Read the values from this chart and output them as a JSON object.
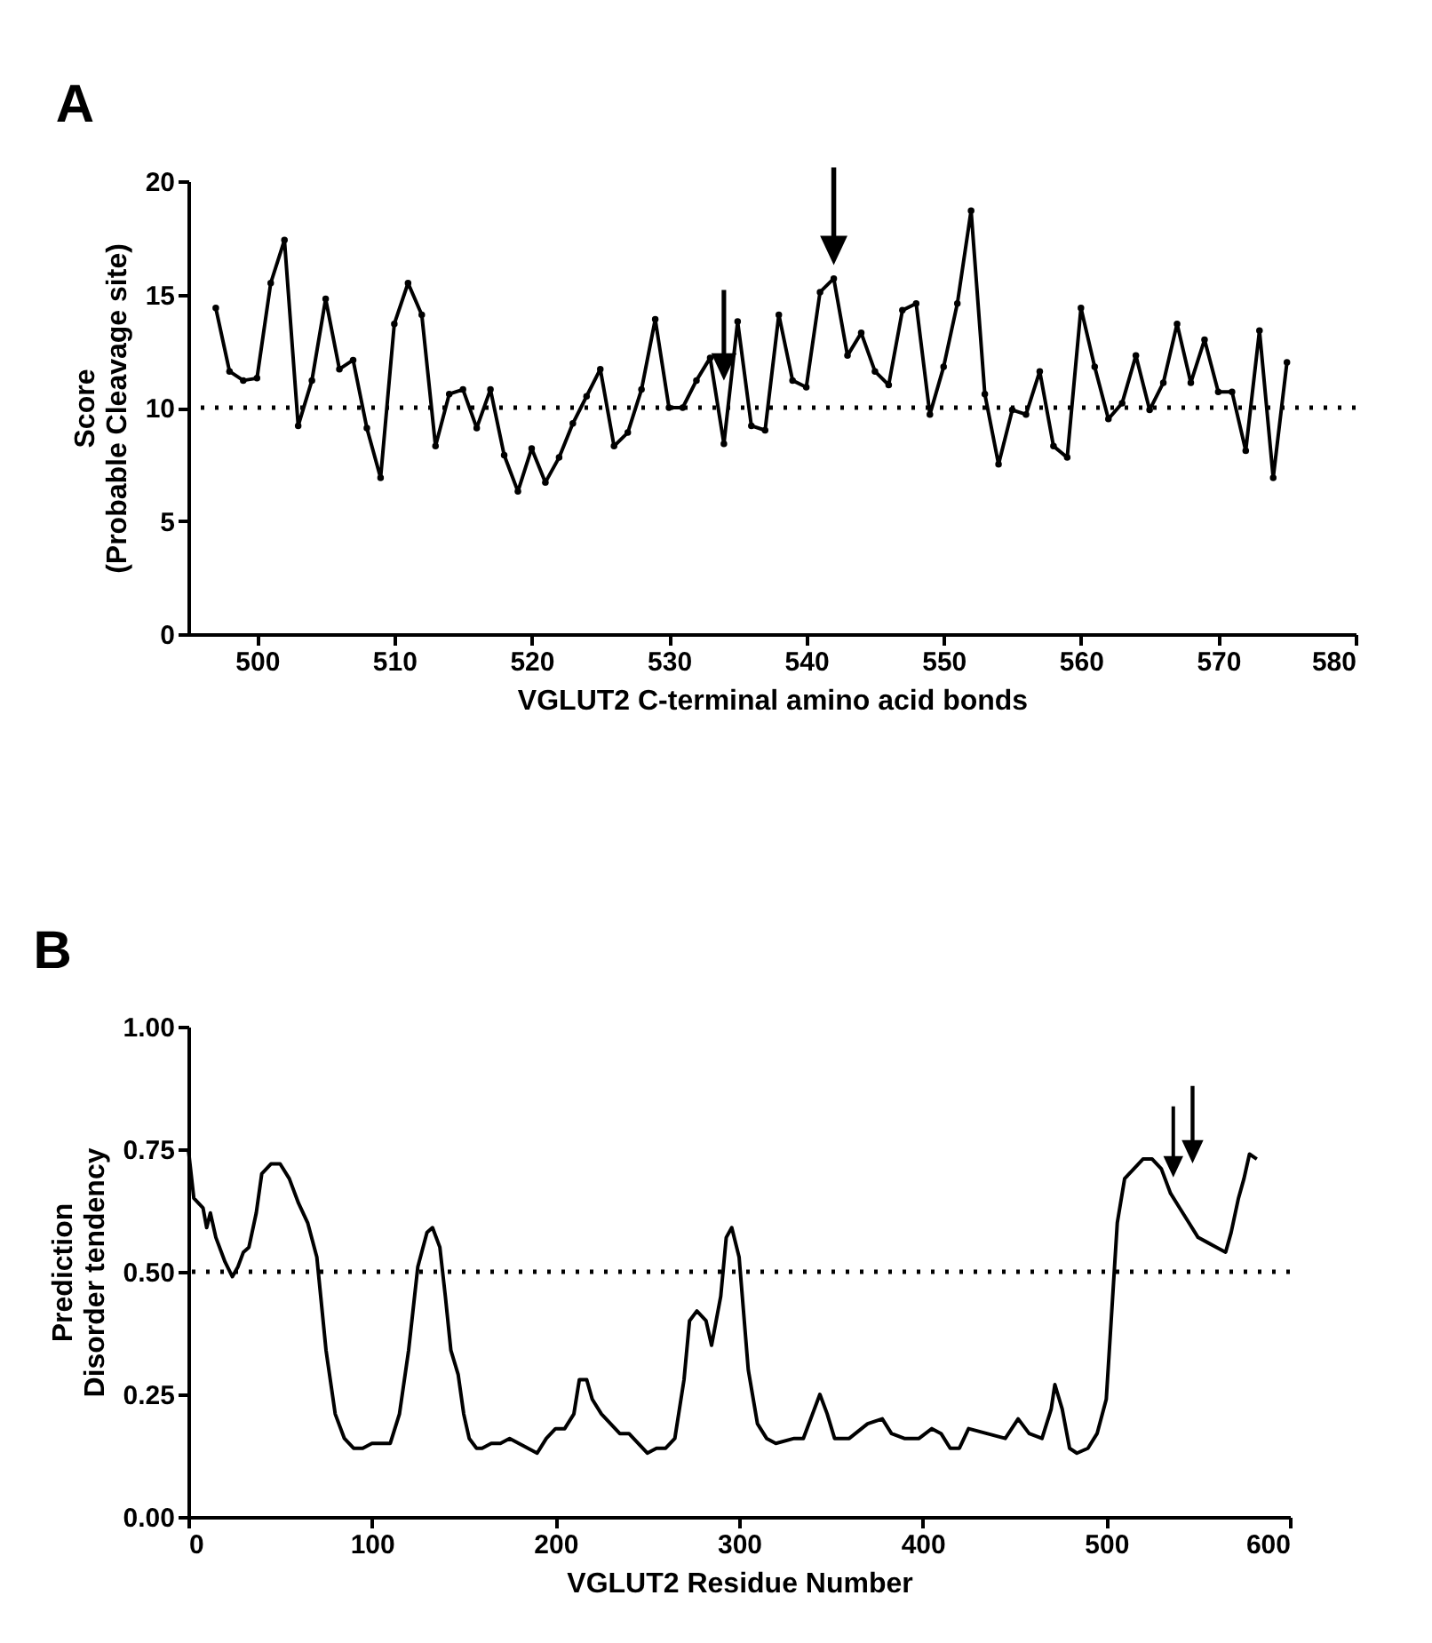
{
  "chart_data": [
    {
      "type": "line",
      "title": "A",
      "xlabel": "VGLUT2 C-terminal amino acid bonds",
      "ylabel": "Score\n(Probable Cleavage site)",
      "marker": "circle",
      "line_style": "solid",
      "grid": false,
      "xlim": [
        495,
        580
      ],
      "xticks": [
        500,
        510,
        520,
        530,
        540,
        550,
        560,
        570,
        580
      ],
      "ylim": [
        0,
        20
      ],
      "yticks": [
        0,
        5,
        10,
        15,
        20
      ],
      "ref_lines": [
        {
          "axis": "y",
          "value": 10,
          "label": null,
          "line_style": "dotted",
          "color": "#000000"
        }
      ],
      "series": [
        {
          "color": "#000000",
          "x": [
            497,
            498,
            499,
            500,
            501,
            502,
            503,
            504,
            505,
            506,
            507,
            508,
            509,
            510,
            511,
            512,
            513,
            514,
            515,
            516,
            517,
            518,
            519,
            520,
            521,
            522,
            523,
            524,
            525,
            526,
            527,
            528,
            529,
            530,
            531,
            532,
            533,
            534,
            535,
            536,
            537,
            538,
            539,
            540,
            541,
            542,
            543,
            544,
            545,
            546,
            547,
            548,
            549,
            550,
            551,
            552,
            553,
            554,
            555,
            556,
            557,
            558,
            559,
            560,
            561,
            562,
            563,
            564,
            565,
            566,
            567,
            568,
            569,
            570,
            571,
            572,
            573,
            574,
            575
          ],
          "values": [
            14.4,
            11.6,
            11.2,
            11.3,
            15.5,
            17.4,
            9.2,
            11.2,
            14.8,
            11.7,
            12.1,
            9.1,
            6.9,
            13.7,
            15.5,
            14.1,
            8.3,
            10.6,
            10.8,
            9.1,
            10.8,
            7.9,
            6.3,
            8.2,
            6.7,
            7.8,
            9.3,
            10.5,
            11.7,
            8.3,
            8.9,
            10.8,
            13.9,
            10.0,
            10.0,
            11.2,
            12.2,
            8.4,
            13.8,
            9.2,
            9.0,
            14.1,
            11.2,
            10.9,
            15.1,
            15.7,
            12.3,
            13.3,
            11.6,
            11.0,
            14.3,
            14.6,
            9.7,
            11.8,
            14.6,
            18.7,
            10.6,
            7.5,
            9.9,
            9.7,
            11.6,
            8.3,
            7.8,
            14.4,
            11.8,
            9.5,
            10.2,
            12.3,
            9.9,
            11.1,
            13.7,
            11.1,
            13.0,
            10.7,
            10.7,
            8.1,
            13.4,
            6.9,
            12.0
          ]
        }
      ]
    },
    {
      "type": "line",
      "title": "B",
      "xlabel": "VGLUT2  Residue Number",
      "ylabel": "Prediction\nDisorder tendency",
      "marker": "none",
      "line_style": "solid",
      "grid": false,
      "xlim": [
        0,
        600
      ],
      "xticks": [
        0,
        100,
        200,
        300,
        400,
        500,
        600
      ],
      "ylim": [
        0,
        1
      ],
      "yticks": [
        {
          "value": 0,
          "label": "0.00"
        },
        {
          "value": 0.25,
          "label": "0.25"
        },
        {
          "value": 0.5,
          "label": "0.50"
        },
        {
          "value": 0.75,
          "label": "0.75"
        },
        {
          "value": 1,
          "label": "1.00"
        }
      ],
      "ref_lines": [
        {
          "axis": "y",
          "value": 0.5,
          "label": null,
          "line_style": "dotted",
          "color": "#000000"
        }
      ],
      "series": [
        {
          "color": "#000000",
          "x": [
            0,
            3,
            8,
            10,
            12,
            15,
            20,
            24,
            27,
            30,
            33,
            37,
            40,
            45,
            50,
            55,
            60,
            65,
            70,
            75,
            80,
            85,
            90,
            95,
            100,
            110,
            115,
            120,
            125,
            130,
            133,
            137,
            140,
            143,
            147,
            150,
            153,
            157,
            160,
            165,
            170,
            175,
            180,
            185,
            190,
            195,
            200,
            205,
            210,
            213,
            217,
            220,
            225,
            230,
            235,
            240,
            245,
            250,
            255,
            260,
            265,
            270,
            273,
            277,
            282,
            285,
            288,
            290,
            293,
            296,
            300,
            305,
            310,
            315,
            320,
            330,
            335,
            340,
            344,
            348,
            352,
            360,
            370,
            378,
            383,
            390,
            398,
            405,
            410,
            415,
            420,
            425,
            435,
            445,
            452,
            458,
            465,
            470,
            472,
            476,
            480,
            484,
            490,
            495,
            500,
            503,
            506,
            510,
            515,
            520,
            525,
            530,
            535,
            540,
            545,
            550,
            555,
            560,
            565,
            568,
            572,
            575,
            578,
            582
          ],
          "values": [
            0.75,
            0.65,
            0.63,
            0.59,
            0.62,
            0.57,
            0.52,
            0.49,
            0.51,
            0.54,
            0.55,
            0.62,
            0.7,
            0.72,
            0.72,
            0.69,
            0.64,
            0.6,
            0.53,
            0.34,
            0.21,
            0.16,
            0.14,
            0.14,
            0.15,
            0.15,
            0.21,
            0.34,
            0.51,
            0.58,
            0.59,
            0.55,
            0.45,
            0.34,
            0.29,
            0.21,
            0.16,
            0.14,
            0.14,
            0.15,
            0.15,
            0.16,
            0.15,
            0.14,
            0.13,
            0.16,
            0.18,
            0.18,
            0.21,
            0.28,
            0.28,
            0.24,
            0.21,
            0.19,
            0.17,
            0.17,
            0.15,
            0.13,
            0.14,
            0.14,
            0.16,
            0.28,
            0.4,
            0.42,
            0.4,
            0.35,
            0.41,
            0.45,
            0.57,
            0.59,
            0.53,
            0.3,
            0.19,
            0.16,
            0.15,
            0.16,
            0.16,
            0.21,
            0.25,
            0.21,
            0.16,
            0.16,
            0.19,
            0.2,
            0.17,
            0.16,
            0.16,
            0.18,
            0.17,
            0.14,
            0.14,
            0.18,
            0.17,
            0.16,
            0.2,
            0.17,
            0.16,
            0.22,
            0.27,
            0.22,
            0.14,
            0.13,
            0.14,
            0.17,
            0.24,
            0.42,
            0.6,
            0.69,
            0.71,
            0.73,
            0.73,
            0.71,
            0.66,
            0.63,
            0.6,
            0.57,
            0.56,
            0.55,
            0.54,
            0.58,
            0.65,
            0.69,
            0.74,
            0.73
          ]
        }
      ]
    }
  ]
}
